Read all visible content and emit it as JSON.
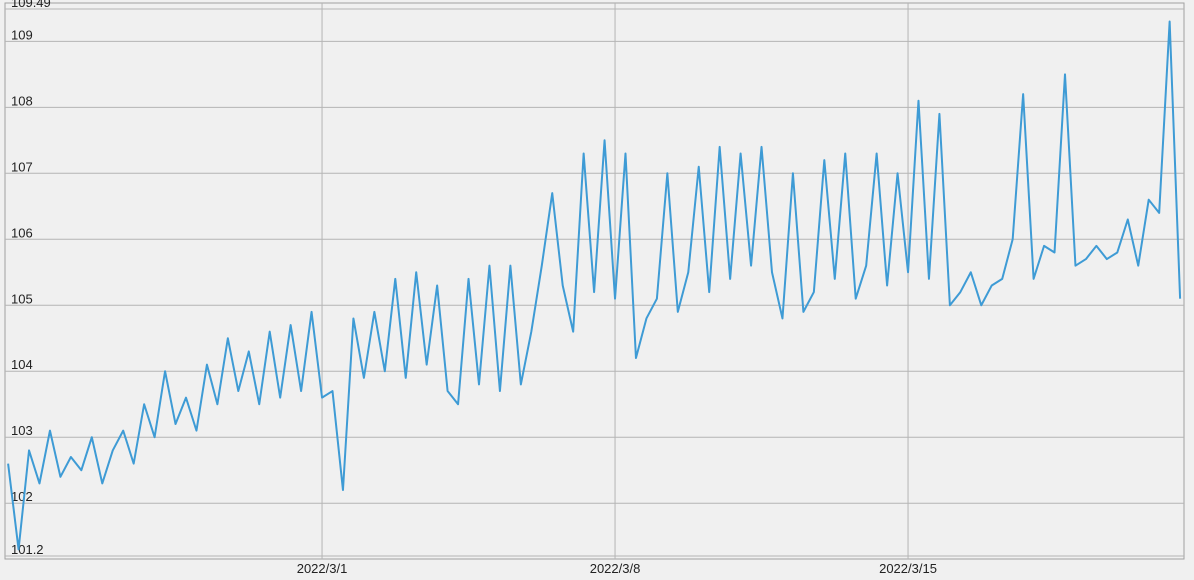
{
  "chart_data": {
    "type": "line",
    "categories": [
      null,
      null,
      null,
      null,
      null,
      null,
      null,
      null,
      null,
      null,
      null,
      null,
      null,
      null,
      null,
      null,
      null,
      null,
      null,
      null,
      null,
      null,
      null,
      null,
      null,
      null,
      null,
      null,
      null,
      null,
      "2022/3/1",
      null,
      null,
      null,
      null,
      null,
      null,
      null,
      null,
      null,
      null,
      null,
      null,
      null,
      null,
      null,
      null,
      null,
      null,
      null,
      null,
      null,
      null,
      null,
      null,
      null,
      null,
      null,
      "2022/3/8",
      null,
      null,
      null,
      null,
      null,
      null,
      null,
      null,
      null,
      null,
      null,
      null,
      null,
      null,
      null,
      null,
      null,
      null,
      null,
      null,
      null,
      null,
      null,
      null,
      null,
      null,
      null,
      "2022/3/15",
      null,
      null,
      null,
      null,
      null,
      null,
      null,
      null,
      null,
      null,
      null,
      null,
      null,
      null,
      null,
      null,
      null,
      null,
      null,
      null,
      null,
      null,
      null,
      null,
      null,
      null
    ],
    "series": [
      {
        "color": "#3e9bd5",
        "values": [
          102.6,
          101.3,
          102.8,
          102.3,
          103.1,
          102.4,
          102.7,
          102.5,
          103.0,
          102.3,
          102.8,
          103.1,
          102.6,
          103.5,
          103.0,
          104.0,
          103.2,
          103.6,
          103.1,
          104.1,
          103.5,
          104.5,
          103.7,
          104.3,
          103.5,
          104.6,
          103.6,
          104.7,
          103.7,
          104.9,
          103.6,
          103.7,
          102.2,
          104.8,
          103.9,
          104.9,
          104.0,
          105.4,
          103.9,
          105.5,
          104.1,
          105.3,
          103.7,
          103.5,
          105.4,
          103.8,
          105.6,
          103.7,
          105.6,
          103.8,
          104.6,
          105.6,
          106.7,
          105.3,
          104.6,
          107.3,
          105.2,
          107.5,
          105.1,
          107.3,
          104.2,
          104.8,
          105.1,
          107.0,
          104.9,
          105.5,
          107.1,
          105.2,
          107.4,
          105.4,
          107.3,
          105.6,
          107.4,
          105.5,
          104.8,
          107.0,
          104.9,
          105.2,
          107.2,
          105.4,
          107.3,
          105.1,
          105.6,
          107.3,
          105.3,
          107.0,
          105.5,
          108.1,
          105.4,
          107.9,
          105.0,
          105.2,
          105.5,
          105.0,
          105.3,
          105.4,
          106.0,
          108.2,
          105.4,
          105.9,
          105.8,
          108.5,
          105.6,
          105.7,
          105.9,
          105.7,
          105.8,
          106.3,
          105.6,
          106.6,
          106.4,
          109.3,
          105.1
        ]
      }
    ],
    "ylim": [
      101.2,
      109.49
    ],
    "yticks": [
      101.2,
      102,
      103,
      104,
      105,
      106,
      107,
      108,
      109,
      109.49
    ],
    "grid": true
  }
}
